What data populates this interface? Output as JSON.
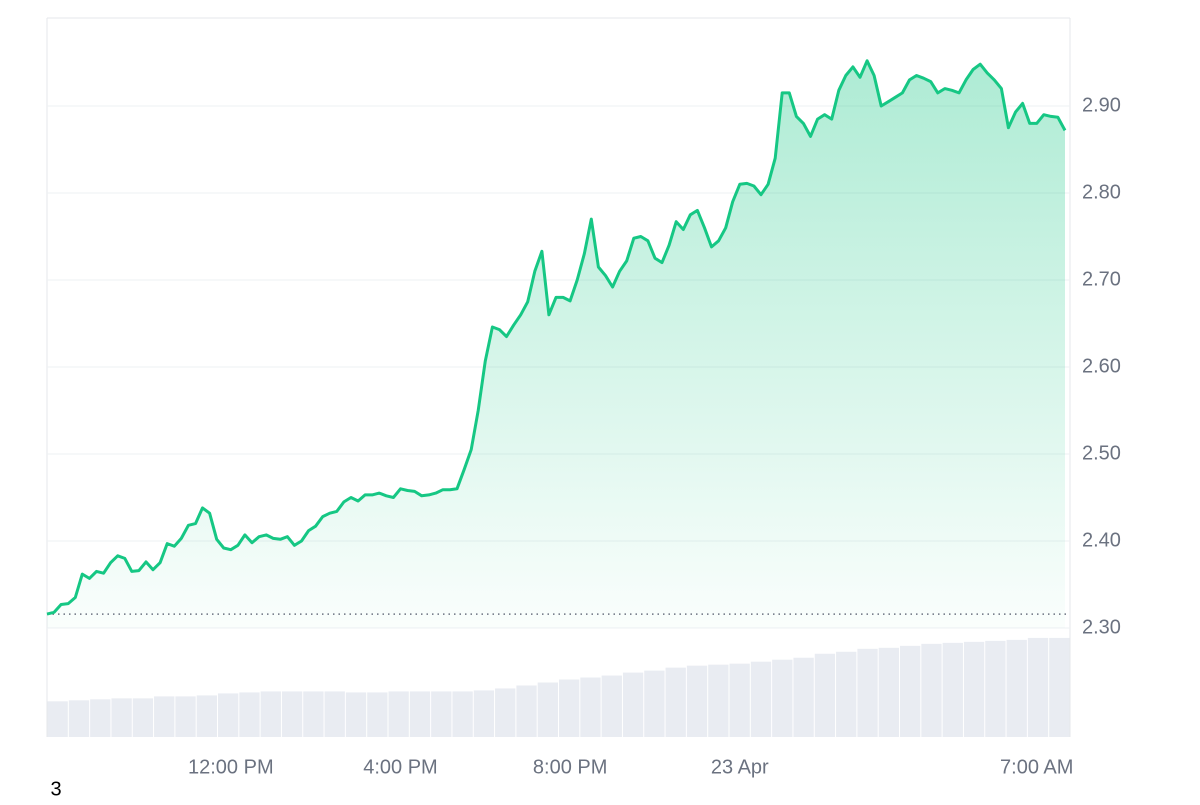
{
  "chart_data": [
    {
      "type": "line",
      "color": "#16c784",
      "grid": true,
      "categories": [
        null,
        null,
        null,
        null,
        null,
        null,
        null,
        null,
        null,
        null,
        null,
        null,
        null,
        null,
        null,
        null,
        null,
        null,
        null,
        null,
        null,
        null,
        null,
        null,
        null,
        null,
        "12:00 PM",
        null,
        null,
        null,
        null,
        null,
        null,
        null,
        null,
        null,
        null,
        null,
        null,
        null,
        null,
        null,
        null,
        null,
        null,
        null,
        null,
        null,
        null,
        null,
        "4:00 PM",
        null,
        null,
        null,
        null,
        null,
        null,
        null,
        null,
        null,
        null,
        null,
        null,
        null,
        null,
        null,
        null,
        null,
        null,
        null,
        null,
        null,
        null,
        null,
        "8:00 PM",
        null,
        null,
        null,
        null,
        null,
        null,
        null,
        null,
        null,
        null,
        null,
        null,
        null,
        null,
        null,
        null,
        null,
        null,
        null,
        null,
        null,
        null,
        null,
        "23 Apr",
        null,
        null,
        null,
        null,
        null,
        null,
        null,
        null,
        null,
        null,
        null,
        null,
        null,
        null,
        null,
        null,
        null,
        null,
        null,
        null,
        null,
        null,
        null,
        null,
        null,
        null,
        null,
        null,
        null,
        null,
        null,
        null,
        null,
        null,
        null,
        null,
        null,
        null,
        null,
        null,
        null,
        "7:00 AM",
        null,
        null,
        null,
        null
      ],
      "values": [
        2.316,
        2.318,
        2.327,
        2.328,
        2.335,
        2.362,
        2.357,
        2.365,
        2.363,
        2.375,
        2.383,
        2.38,
        2.365,
        2.366,
        2.376,
        2.367,
        2.375,
        2.397,
        2.394,
        2.403,
        2.418,
        2.42,
        2.438,
        2.432,
        2.402,
        2.392,
        2.39,
        2.395,
        2.407,
        2.398,
        2.405,
        2.407,
        2.403,
        2.402,
        2.405,
        2.395,
        2.4,
        2.412,
        2.417,
        2.428,
        2.432,
        2.434,
        2.445,
        2.45,
        2.446,
        2.453,
        2.453,
        2.455,
        2.452,
        2.45,
        2.46,
        2.458,
        2.457,
        2.452,
        2.453,
        2.455,
        2.459,
        2.459,
        2.46,
        2.482,
        2.505,
        2.55,
        2.607,
        2.646,
        2.643,
        2.635,
        2.648,
        2.66,
        2.675,
        2.71,
        2.733,
        2.66,
        2.68,
        2.68,
        2.676,
        2.7,
        2.73,
        2.77,
        2.715,
        2.705,
        2.692,
        2.71,
        2.722,
        2.748,
        2.75,
        2.745,
        2.725,
        2.72,
        2.74,
        2.767,
        2.758,
        2.775,
        2.78,
        2.76,
        2.738,
        2.745,
        2.76,
        2.79,
        2.81,
        2.811,
        2.808,
        2.798,
        2.81,
        2.84,
        2.915,
        2.915,
        2.888,
        2.88,
        2.865,
        2.885,
        2.89,
        2.885,
        2.918,
        2.935,
        2.945,
        2.933,
        2.952,
        2.935,
        2.9,
        2.905,
        2.91,
        2.915,
        2.93,
        2.935,
        2.932,
        2.928,
        2.915,
        2.92,
        2.918,
        2.915,
        2.93,
        2.942,
        2.948,
        2.938,
        2.93,
        2.92,
        2.875,
        2.893,
        2.903,
        2.88,
        2.88,
        2.89,
        2.888,
        2.887,
        2.872
      ],
      "ylim": [
        2.3,
        3.0
      ],
      "yticks": [
        {
          "value": 2.3,
          "label": "2.30"
        },
        {
          "value": 2.4,
          "label": "2.40"
        },
        {
          "value": 2.5,
          "label": "2.50"
        },
        {
          "value": 2.6,
          "label": "2.60"
        },
        {
          "value": 2.7,
          "label": "2.70"
        },
        {
          "value": 2.8,
          "label": "2.80"
        },
        {
          "value": 2.9,
          "label": "2.90"
        }
      ]
    },
    {
      "type": "bar",
      "color": "#e9ecf2",
      "values": [
        36,
        37,
        38,
        39,
        39,
        41,
        41,
        42,
        44,
        45,
        46,
        46,
        46,
        46,
        45,
        45,
        46,
        46,
        46,
        46,
        47,
        49,
        52,
        55,
        58,
        60,
        62,
        65,
        67,
        70,
        72,
        73,
        74,
        76,
        78,
        80,
        84,
        86,
        89,
        90,
        92,
        94,
        95,
        96,
        97,
        98,
        100,
        100
      ],
      "ylim": [
        0,
        110
      ]
    }
  ],
  "footer": "3"
}
